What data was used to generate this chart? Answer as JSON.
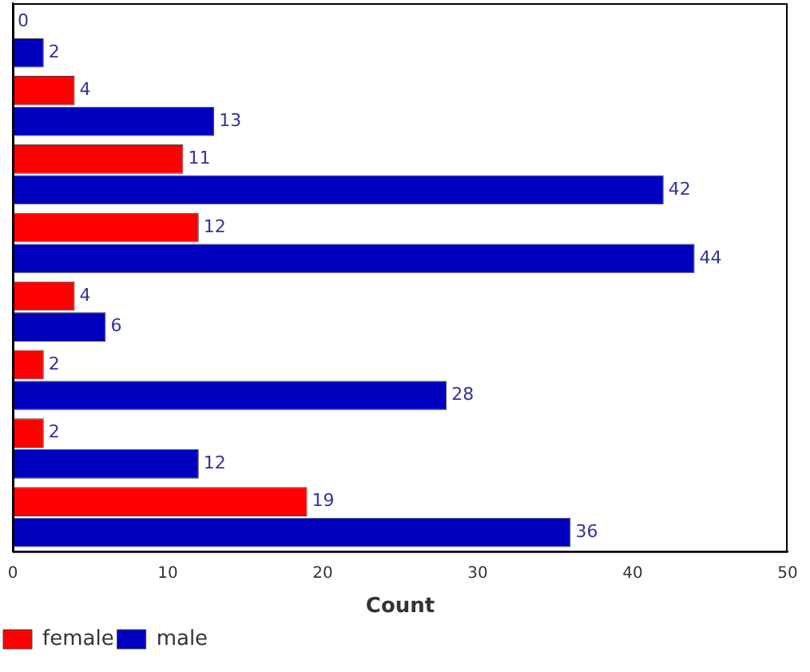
{
  "chart_data": {
    "type": "bar",
    "orientation": "horizontal",
    "xlabel": "Count",
    "categories": [
      null,
      null,
      null,
      null,
      null,
      null,
      null,
      null
    ],
    "series": [
      {
        "name": "female",
        "color": "#ff0000",
        "values": [
          0,
          4,
          11,
          12,
          4,
          2,
          2,
          19
        ]
      },
      {
        "name": "male",
        "color": "#0000c0",
        "values": [
          2,
          13,
          42,
          44,
          6,
          28,
          12,
          36
        ]
      }
    ],
    "xlim": [
      0,
      50
    ],
    "xticks": [
      0,
      10,
      20,
      30,
      40,
      50
    ],
    "data_labels": true,
    "grid": false,
    "legend": "bottom left",
    "tick_labels": "x"
  }
}
